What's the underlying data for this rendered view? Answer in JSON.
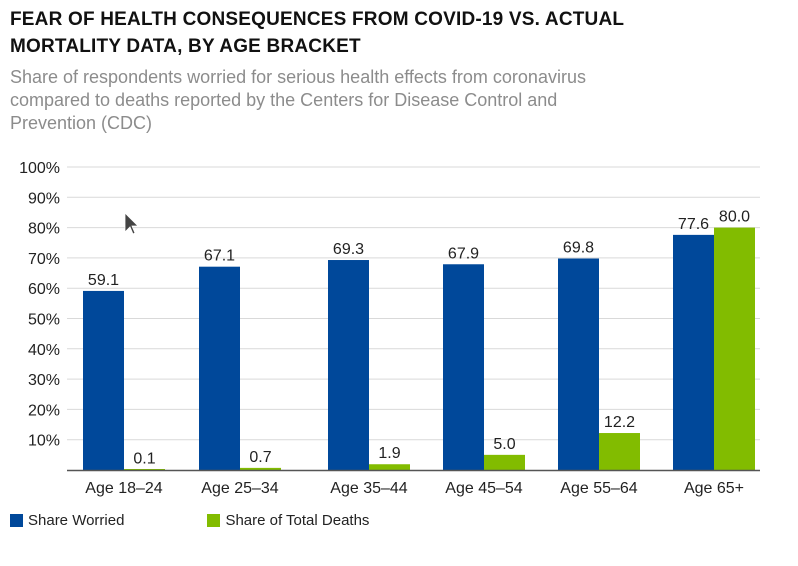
{
  "title": "FEAR OF HEALTH CONSEQUENCES FROM COVID-19 VS. ACTUAL MORTALITY DATA, BY AGE BRACKET",
  "subtitle": "Share of respondents worried for serious health effects from coronavirus compared to deaths reported by the Centers for Disease Control and Prevention (CDC)",
  "colors": {
    "worried": "#00489a",
    "deaths": "#82bc00",
    "grid": "#d9d9d9",
    "axis": "#555555"
  },
  "chart_data": {
    "type": "bar",
    "categories": [
      "Age 18–24",
      "Age 25–34",
      "Age 35–44",
      "Age 45–54",
      "Age 55–64",
      "Age 65+"
    ],
    "series": [
      {
        "name": "Share Worried",
        "values": [
          59.1,
          67.1,
          69.3,
          67.9,
          69.8,
          77.6
        ]
      },
      {
        "name": "Share of Total Deaths",
        "values": [
          0.1,
          0.7,
          1.9,
          5.0,
          12.2,
          80.0
        ]
      }
    ],
    "data_labels": [
      [
        "59.1",
        "67.1",
        "69.3",
        "67.9",
        "69.8",
        "77.6"
      ],
      [
        "0.1",
        "0.7",
        "1.9",
        "5.0",
        "12.2",
        "80.0"
      ]
    ],
    "yticks": [
      "10%",
      "20%",
      "30%",
      "40%",
      "50%",
      "60%",
      "70%",
      "80%",
      "90%",
      "100%"
    ],
    "ylim": [
      0,
      100
    ],
    "grid": true,
    "legend": "bottom-left"
  },
  "legend": {
    "worried_label": "Share Worried",
    "deaths_label": "Share of Total Deaths"
  }
}
